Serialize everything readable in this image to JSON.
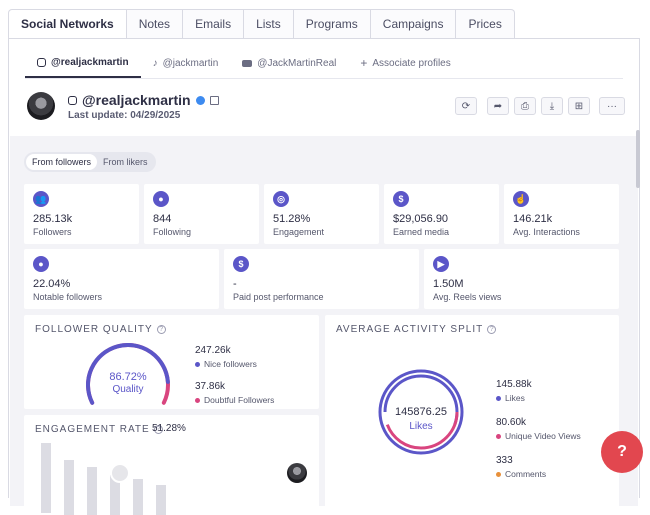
{
  "main_tabs": [
    {
      "label": "Social Networks",
      "active": true
    },
    {
      "label": "Notes"
    },
    {
      "label": "Emails"
    },
    {
      "label": "Lists"
    },
    {
      "label": "Programs"
    },
    {
      "label": "Campaigns"
    },
    {
      "label": "Prices"
    }
  ],
  "profile_tabs": [
    {
      "label": "@realjackmartin",
      "icon": "instagram-icon",
      "active": true
    },
    {
      "label": "@jackmartin",
      "icon": "tiktok-icon"
    },
    {
      "label": "@JackMartinReal",
      "icon": "youtube-icon"
    },
    {
      "label": "Associate profiles",
      "icon": "plus-icon"
    }
  ],
  "profile": {
    "handle": "@realjackmartin",
    "last_update": "Last update: 04/29/2025"
  },
  "audience_toggle": {
    "options": [
      "From followers",
      "From likers"
    ],
    "selected": "From followers"
  },
  "stats_row1": [
    {
      "value": "285.13k",
      "label": "Followers",
      "icon": "users-icon"
    },
    {
      "value": "844",
      "label": "Following",
      "icon": "user-icon"
    },
    {
      "value": "51.28%",
      "label": "Engagement",
      "icon": "target-icon"
    },
    {
      "value": "$29,056.90",
      "label": "Earned media",
      "icon": "dollar-icon"
    },
    {
      "value": "146.21k",
      "label": "Avg. Interactions",
      "icon": "hand-icon"
    }
  ],
  "stats_row2": [
    {
      "value": "22.04%",
      "label": "Notable followers",
      "icon": "user-star-icon"
    },
    {
      "value": "-",
      "label": "Paid post performance",
      "icon": "dollar-icon"
    },
    {
      "value": "1.50M",
      "label": "Avg. Reels views",
      "icon": "play-icon"
    }
  ],
  "follower_quality": {
    "title": "FOLLOWER QUALITY",
    "center_value": "86.72%",
    "center_label": "Quality",
    "quality_fraction": 0.8672,
    "legend": [
      {
        "value": "247.26k",
        "label": "Nice followers",
        "color": "#5b56c8"
      },
      {
        "value": "37.86k",
        "label": "Doubtful Followers",
        "color": "#d9457f"
      }
    ]
  },
  "engagement_rate": {
    "title": "ENGAGEMENT RATE",
    "value": "51.28%"
  },
  "activity_split": {
    "title": "AVERAGE ACTIVITY SPLIT",
    "center_value": "145876.25",
    "center_label": "Likes",
    "legend": [
      {
        "value": "145.88k",
        "label": "Likes",
        "color": "#5b56c8"
      },
      {
        "value": "80.60k",
        "label": "Unique Video Views",
        "color": "#d9457f"
      },
      {
        "value": "333",
        "label": "Comments",
        "color": "#e8903a"
      }
    ]
  },
  "colors": {
    "accent": "#5b56c8",
    "secondary": "#d9457f",
    "chat": "#e2474f"
  }
}
